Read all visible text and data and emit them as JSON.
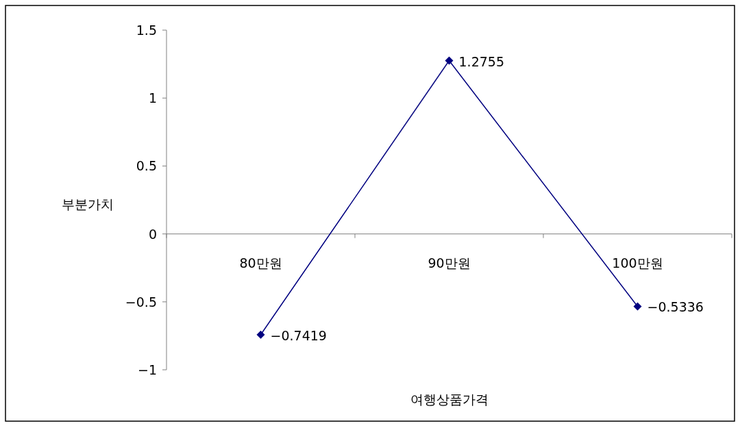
{
  "chart_data": {
    "type": "line",
    "xlabel": "여행상품가격",
    "ylabel": "부분가치",
    "categories": [
      "80만원",
      "90만원",
      "100만원"
    ],
    "series": [
      {
        "color": "#000080",
        "values": [
          -0.7419,
          1.2755,
          -0.5336
        ]
      }
    ],
    "ylim": [
      -1,
      1.5
    ],
    "yticks": [
      -1,
      -0.5,
      0,
      0.5,
      1,
      1.5
    ],
    "data_labels": true,
    "marker": "diamond",
    "line_style": "solid"
  }
}
